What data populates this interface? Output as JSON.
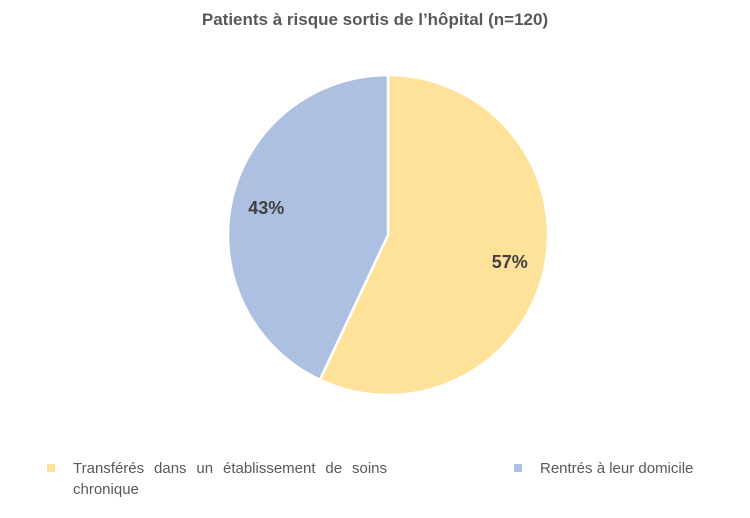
{
  "chart_data": {
    "type": "pie",
    "title": "Patients à risque sortis de l’hôpital (n=120)",
    "categories": [
      "Transférés dans un établissement de soins chronique",
      "Rentrés à leur domicile"
    ],
    "values": [
      57,
      43
    ],
    "data_labels": [
      "57%",
      "43%"
    ],
    "colors": [
      "#FFE29A",
      "#AEC0E1"
    ],
    "legend_position": "bottom"
  }
}
